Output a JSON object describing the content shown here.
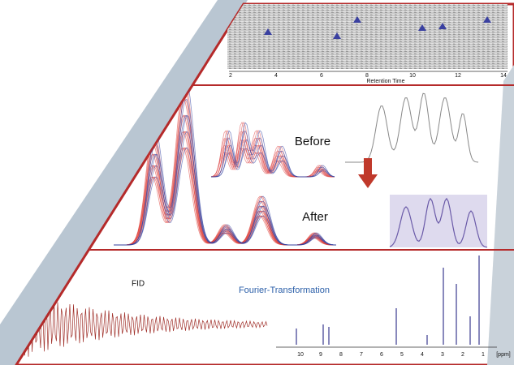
{
  "chromatogram": {
    "axis_label": "Retention Time",
    "ticks": [
      "2",
      "4",
      "6",
      "8",
      "10",
      "12",
      "14"
    ]
  },
  "alignment": {
    "before": "Before",
    "after": "After"
  },
  "nmr": {
    "fid_label": "FID",
    "transform_label": "Fourier-Transformation",
    "ticks": [
      "10",
      "9",
      "8",
      "7",
      "6",
      "5",
      "4",
      "3",
      "2",
      "1"
    ],
    "unit": "[ppm]"
  }
}
